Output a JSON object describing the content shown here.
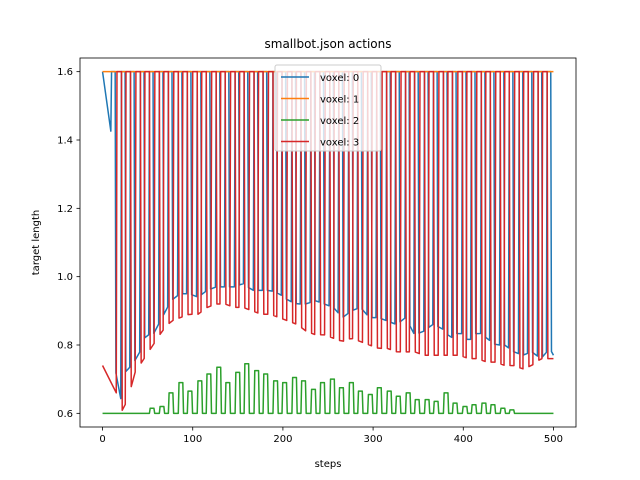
{
  "chart_data": {
    "type": "line",
    "title": "smallbot.json actions",
    "xlabel": "steps",
    "ylabel": "target length",
    "xlim": [
      -25,
      525
    ],
    "ylim": [
      0.56,
      1.64
    ],
    "xticks": [
      0,
      100,
      200,
      300,
      400,
      500
    ],
    "yticks": [
      0.6,
      0.8,
      1.0,
      1.2,
      1.4,
      1.6
    ],
    "xtick_labels": [
      "0",
      "100",
      "200",
      "300",
      "400",
      "500"
    ],
    "ytick_labels": [
      "0.6",
      "0.8",
      "1.0",
      "1.2",
      "1.4",
      "1.6"
    ],
    "legend_position": "top-center",
    "grid": false,
    "series": [
      {
        "name": "voxel: 0",
        "color": "#1f77b4",
        "pulse": {
          "high": 1.6,
          "start": 0,
          "end": 500,
          "pulse_starts": [
            10,
            21,
            31,
            42,
            52,
            63,
            73,
            84,
            94,
            105,
            115,
            126,
            136,
            147,
            157,
            168,
            178,
            189,
            199,
            210,
            220,
            231,
            241,
            252,
            262,
            273,
            283,
            294,
            304,
            315,
            325,
            336,
            346,
            357,
            367,
            378,
            388,
            399,
            409,
            420,
            430,
            441,
            451,
            462,
            472,
            483,
            493
          ],
          "pulse_width": 4,
          "low_points": [
            [
              0,
              1.6
            ],
            [
              8,
              1.6
            ],
            [
              14,
              0.73
            ],
            [
              20,
              0.64
            ],
            [
              25,
              0.72
            ],
            [
              32,
              0.74
            ],
            [
              40,
              0.77
            ],
            [
              48,
              0.83
            ],
            [
              56,
              0.83
            ],
            [
              66,
              0.88
            ],
            [
              76,
              0.93
            ],
            [
              86,
              0.95
            ],
            [
              96,
              0.95
            ],
            [
              106,
              0.94
            ],
            [
              116,
              0.96
            ],
            [
              126,
              0.97
            ],
            [
              136,
              0.97
            ],
            [
              146,
              0.97
            ],
            [
              156,
              0.98
            ],
            [
              166,
              0.96
            ],
            [
              176,
              0.96
            ],
            [
              186,
              0.96
            ],
            [
              196,
              0.95
            ],
            [
              206,
              0.93
            ],
            [
              216,
              0.92
            ],
            [
              226,
              0.92
            ],
            [
              236,
              0.93
            ],
            [
              246,
              0.92
            ],
            [
              256,
              0.91
            ],
            [
              266,
              0.88
            ],
            [
              276,
              0.9
            ],
            [
              286,
              0.91
            ],
            [
              296,
              0.88
            ],
            [
              306,
              0.88
            ],
            [
              316,
              0.87
            ],
            [
              326,
              0.86
            ],
            [
              336,
              0.88
            ],
            [
              346,
              0.83
            ],
            [
              356,
              0.84
            ],
            [
              366,
              0.86
            ],
            [
              376,
              0.85
            ],
            [
              386,
              0.82
            ],
            [
              396,
              0.84
            ],
            [
              406,
              0.81
            ],
            [
              416,
              0.84
            ],
            [
              426,
              0.82
            ],
            [
              436,
              0.8
            ],
            [
              446,
              0.8
            ],
            [
              456,
              0.78
            ],
            [
              466,
              0.77
            ],
            [
              476,
              0.78
            ],
            [
              486,
              0.76
            ],
            [
              496,
              0.79
            ],
            [
              500,
              0.77
            ]
          ]
        }
      },
      {
        "name": "voxel: 1",
        "color": "#ff7f0e",
        "points": [
          [
            0,
            1.6
          ],
          [
            500,
            1.6
          ]
        ]
      },
      {
        "name": "voxel: 2",
        "color": "#2ca02c",
        "pulse": {
          "low": 0.6,
          "start": 0,
          "end": 500,
          "pulse_starts": [
            52,
            63,
            73,
            84,
            94,
            105,
            115,
            126,
            136,
            147,
            157,
            168,
            178,
            189,
            199,
            210,
            220,
            231,
            241,
            252,
            262,
            273,
            283,
            294,
            304,
            315,
            325,
            336,
            346,
            357,
            367,
            378,
            388,
            399,
            409,
            420,
            430,
            441,
            451
          ],
          "pulse_width": 5,
          "peak_values": [
            0.615,
            0.62,
            0.66,
            0.69,
            0.665,
            0.695,
            0.715,
            0.735,
            0.69,
            0.72,
            0.745,
            0.725,
            0.715,
            0.695,
            0.69,
            0.705,
            0.695,
            0.67,
            0.69,
            0.7,
            0.675,
            0.69,
            0.665,
            0.655,
            0.675,
            0.665,
            0.65,
            0.66,
            0.64,
            0.64,
            0.635,
            0.66,
            0.63,
            0.62,
            0.625,
            0.63,
            0.625,
            0.615,
            0.61
          ]
        }
      },
      {
        "name": "voxel: 3",
        "color": "#d62728",
        "pulse": {
          "high": 1.6,
          "start": 0,
          "end": 500,
          "pulse_starts": [
            16,
            26,
            37,
            47,
            58,
            68,
            79,
            89,
            100,
            110,
            121,
            131,
            142,
            152,
            163,
            173,
            184,
            194,
            205,
            215,
            226,
            236,
            247,
            257,
            268,
            278,
            289,
            299,
            310,
            320,
            331,
            341,
            352,
            362,
            373,
            383,
            394,
            404,
            415,
            425,
            436,
            446,
            457,
            467,
            478,
            488
          ],
          "pulse_width": 5,
          "low_points": [
            [
              0,
              0.74
            ],
            [
              6,
              0.73
            ],
            [
              12,
              0.7
            ],
            [
              20,
              0.6
            ],
            [
              28,
              0.64
            ],
            [
              36,
              0.72
            ],
            [
              46,
              0.76
            ],
            [
              56,
              0.8
            ],
            [
              66,
              0.84
            ],
            [
              76,
              0.87
            ],
            [
              86,
              0.88
            ],
            [
              96,
              0.89
            ],
            [
              106,
              0.89
            ],
            [
              116,
              0.91
            ],
            [
              126,
              0.92
            ],
            [
              136,
              0.92
            ],
            [
              146,
              0.91
            ],
            [
              156,
              0.91
            ],
            [
              166,
              0.9
            ],
            [
              176,
              0.89
            ],
            [
              186,
              0.89
            ],
            [
              196,
              0.88
            ],
            [
              206,
              0.87
            ],
            [
              216,
              0.86
            ],
            [
              226,
              0.84
            ],
            [
              236,
              0.83
            ],
            [
              246,
              0.83
            ],
            [
              256,
              0.82
            ],
            [
              266,
              0.81
            ],
            [
              276,
              0.82
            ],
            [
              286,
              0.81
            ],
            [
              296,
              0.8
            ],
            [
              306,
              0.79
            ],
            [
              316,
              0.79
            ],
            [
              326,
              0.78
            ],
            [
              336,
              0.78
            ],
            [
              346,
              0.78
            ],
            [
              356,
              0.77
            ],
            [
              366,
              0.77
            ],
            [
              376,
              0.77
            ],
            [
              386,
              0.77
            ],
            [
              396,
              0.77
            ],
            [
              406,
              0.76
            ],
            [
              416,
              0.76
            ],
            [
              426,
              0.75
            ],
            [
              436,
              0.75
            ],
            [
              446,
              0.74
            ],
            [
              456,
              0.74
            ],
            [
              466,
              0.73
            ],
            [
              476,
              0.74
            ],
            [
              486,
              0.76
            ],
            [
              496,
              0.76
            ],
            [
              500,
              0.76
            ]
          ]
        }
      }
    ]
  }
}
